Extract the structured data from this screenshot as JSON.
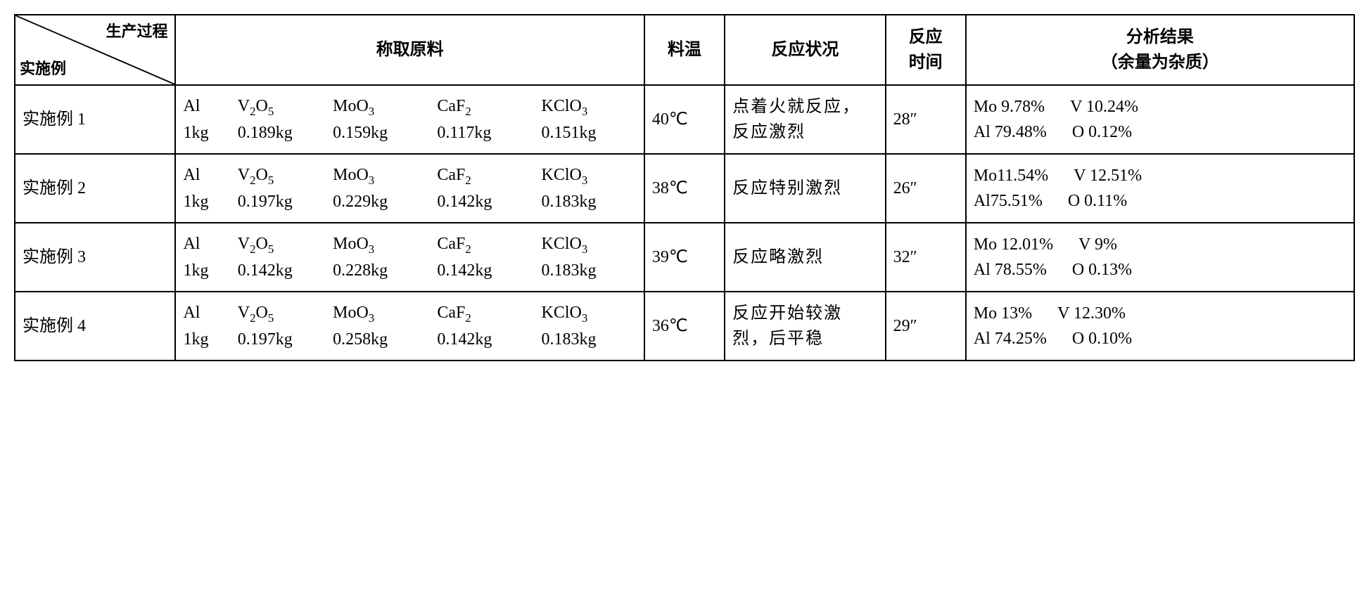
{
  "table": {
    "border_color": "#000000",
    "background_color": "#ffffff",
    "font_size": 24,
    "header": {
      "diagonal_top": "生产过程",
      "diagonal_bottom": "实施例",
      "col_materials": "称取原料",
      "col_temp": "料温",
      "col_condition": "反应状况",
      "col_time_l1": "反应",
      "col_time_l2": "时间",
      "col_result_l1": "分析结果",
      "col_result_l2": "（余量为杂质）"
    },
    "material_labels": {
      "al": "Al",
      "v2o5": "V",
      "v2o5_sub1": "2",
      "v2o5_o": "O",
      "v2o5_sub2": "5",
      "moo3": "MoO",
      "moo3_sub": "3",
      "caf2": "CaF",
      "caf2_sub": "2",
      "kclo3": "KClO",
      "kclo3_sub": "3"
    },
    "rows": [
      {
        "example_label": "实施例",
        "example_num": " 1",
        "al": "1kg",
        "v2o5": "0.189kg",
        "moo3": "0.159kg",
        "caf2": "0.117kg",
        "kclo3": "0.151kg",
        "temp": "40℃",
        "condition": "点着火就反应，反应激烈",
        "time": "28″",
        "result_mo": "Mo 9.78%",
        "result_v": "V 10.24%",
        "result_al": "Al 79.48%",
        "result_o": "O 0.12%"
      },
      {
        "example_label": "实施例",
        "example_num": " 2",
        "al": "1kg",
        "v2o5": "0.197kg",
        "moo3": "0.229kg",
        "caf2": "0.142kg",
        "kclo3": "0.183kg",
        "temp": "38℃",
        "condition": "反应特别激烈",
        "time": "26″",
        "result_mo": "Mo11.54%",
        "result_v": "V 12.51%",
        "result_al": "Al75.51%",
        "result_o": "O 0.11%"
      },
      {
        "example_label": "实施例",
        "example_num": " 3",
        "al": "1kg",
        "v2o5": "0.142kg",
        "moo3": "0.228kg",
        "caf2": "0.142kg",
        "kclo3": "0.183kg",
        "temp": "39℃",
        "condition": "反应略激烈",
        "time": "32″",
        "result_mo": "Mo 12.01%",
        "result_v": "V 9%",
        "result_al": "Al 78.55%",
        "result_o": "O 0.13%"
      },
      {
        "example_label": "实施例",
        "example_num": " 4",
        "al": "1kg",
        "v2o5": "0.197kg",
        "moo3": "0.258kg",
        "caf2": "0.142kg",
        "kclo3": "0.183kg",
        "temp": "36℃",
        "condition": "反应开始较激烈，后平稳",
        "time": "29″",
        "result_mo": "Mo 13%",
        "result_v": "V 12.30%",
        "result_al": "Al 74.25%",
        "result_o": "O 0.10%"
      }
    ]
  }
}
